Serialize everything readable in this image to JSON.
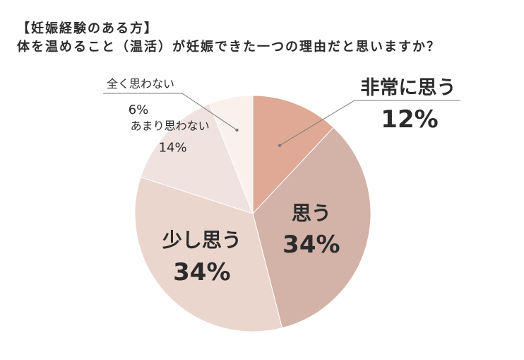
{
  "header": {
    "title_line1": "【妊娠経験のある方】",
    "title_line2": "体を温めること（温活）が妊娠できた一つの理由だと思いますか？"
  },
  "chart_data": {
    "type": "pie",
    "start": "12 o'clock",
    "direction": "clockwise",
    "slices": [
      {
        "label": "非常に思う",
        "value": 12,
        "value_label": "12%",
        "color": "#e0a995"
      },
      {
        "label": "思う",
        "value": 34,
        "value_label": "34%",
        "color": "#d3b2a8"
      },
      {
        "label": "少し思う",
        "value": 34,
        "value_label": "34%",
        "color": "#ebd6ce"
      },
      {
        "label": "あまり思わない",
        "value": 14,
        "value_label": "14%",
        "color": "#f0e3df"
      },
      {
        "label": "全く思わない",
        "value": 6,
        "value_label": "6%",
        "color": "#fbf1ec"
      }
    ],
    "unit": "%"
  }
}
